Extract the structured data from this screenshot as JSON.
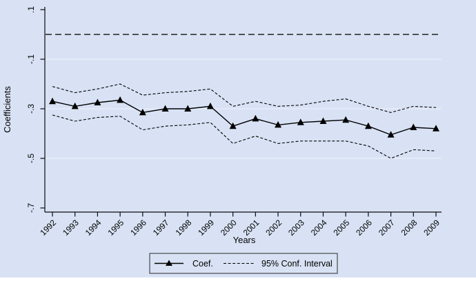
{
  "figure": {
    "bg_color": "#d8e2f4",
    "page_color": "#ffffff",
    "grid_color": "#eaeffb",
    "axis_color": "#0a0a0a",
    "zero_line_color": "#3d3d3d",
    "series_color": "#000000",
    "legend_border_color": "#2b2b2b"
  },
  "chart_data": {
    "type": "line",
    "title": "",
    "xlabel": "Years",
    "ylabel": "Coefficients",
    "x": [
      1992,
      1993,
      1994,
      1995,
      1996,
      1997,
      1998,
      1999,
      2000,
      2001,
      2002,
      2003,
      2004,
      2005,
      2006,
      2007,
      2008,
      2009
    ],
    "series": [
      {
        "name": "Coef.",
        "marker": "filled-triangle",
        "line_style": "solid",
        "values": [
          -0.27,
          -0.29,
          -0.275,
          -0.265,
          -0.315,
          -0.3,
          -0.3,
          -0.29,
          -0.37,
          -0.34,
          -0.365,
          -0.355,
          -0.35,
          -0.345,
          -0.37,
          -0.405,
          -0.375,
          -0.38
        ]
      },
      {
        "name": "95% Conf. Interval (upper)",
        "marker": "none",
        "line_style": "dashed",
        "values": [
          -0.21,
          -0.235,
          -0.22,
          -0.2,
          -0.245,
          -0.235,
          -0.23,
          -0.22,
          -0.29,
          -0.27,
          -0.29,
          -0.285,
          -0.27,
          -0.26,
          -0.29,
          -0.315,
          -0.29,
          -0.295
        ]
      },
      {
        "name": "95% Conf. Interval (lower)",
        "marker": "none",
        "line_style": "dashed",
        "values": [
          -0.325,
          -0.35,
          -0.335,
          -0.33,
          -0.385,
          -0.37,
          -0.365,
          -0.355,
          -0.44,
          -0.41,
          -0.44,
          -0.43,
          -0.43,
          -0.43,
          -0.45,
          -0.5,
          -0.465,
          -0.47
        ]
      }
    ],
    "reference_line_y": 0,
    "reference_line_style": "long-dash",
    "yticks": [
      0.1,
      -0.1,
      -0.3,
      -0.5,
      -0.7
    ],
    "ytick_labels": [
      ".1",
      "-.1",
      "-.3",
      "-.5",
      "-.7"
    ],
    "grid_yticks": [
      -0.1,
      -0.3,
      -0.5
    ],
    "ylim": [
      -0.73,
      0.12
    ],
    "grid": "horizontal",
    "legend": {
      "position": "bottom-center",
      "entries": [
        {
          "label": "Coef.",
          "symbol": "solid-line-triangle"
        },
        {
          "label": "95% Conf. Interval",
          "symbol": "dashed-line"
        }
      ]
    }
  }
}
